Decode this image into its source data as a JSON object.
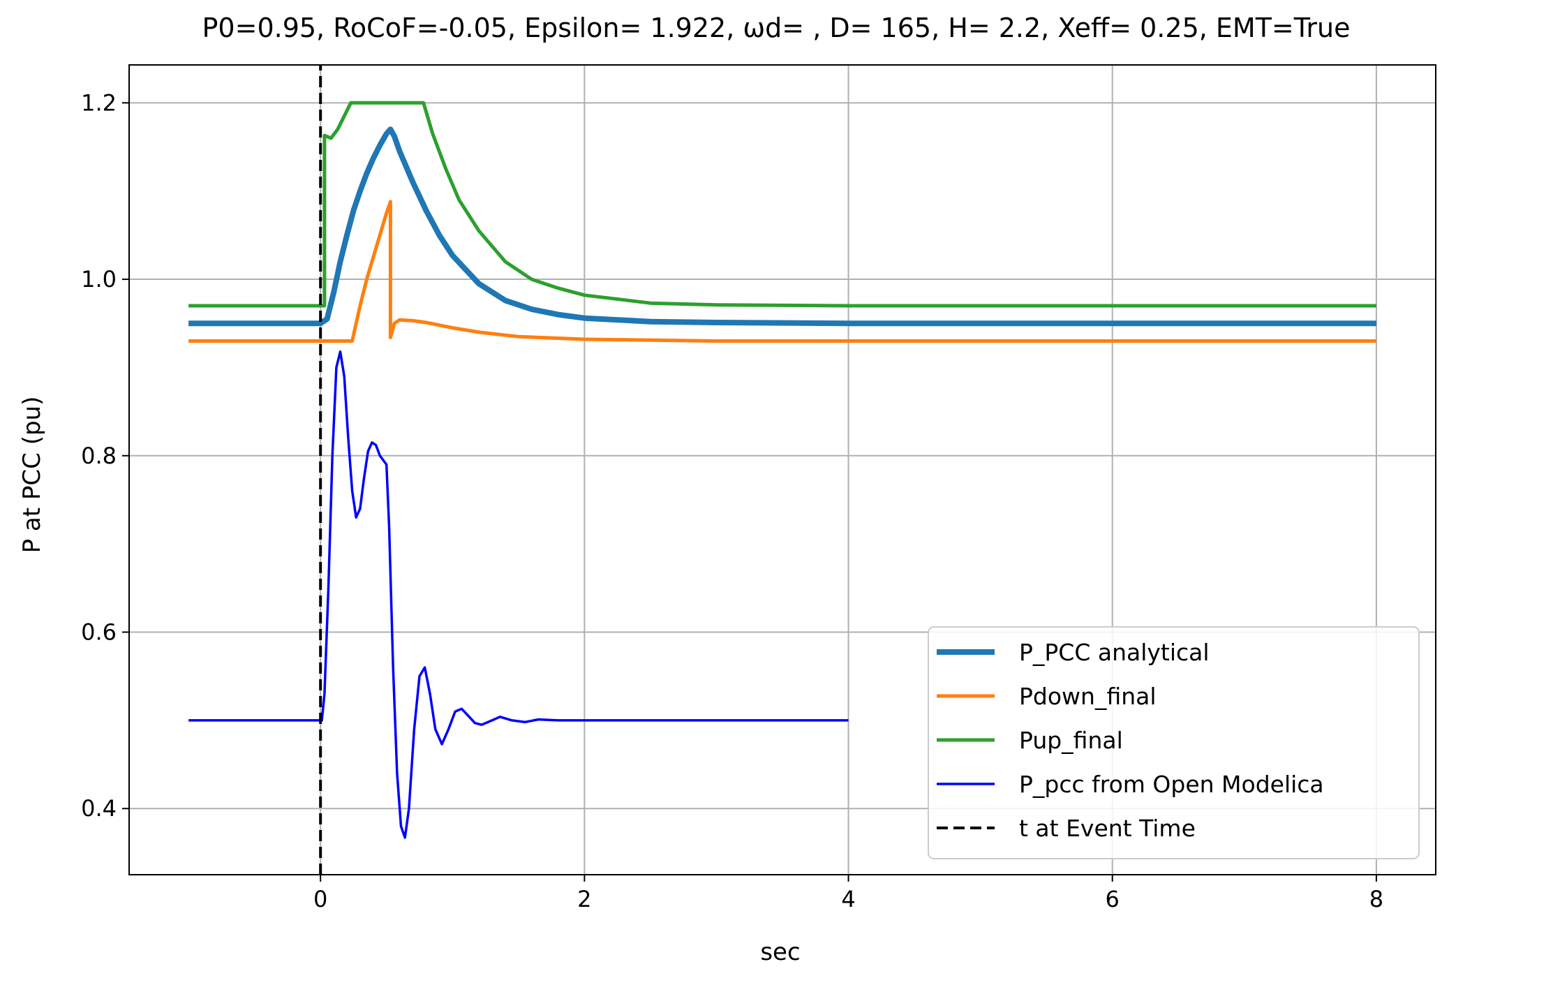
{
  "chart_data": {
    "type": "line",
    "title": "P0=0.95, RoCoF=-0.05, Epsilon= 1.922, ωd= , D= 165, H= 2.2, Xeff= 0.25, EMT=True",
    "xlabel": "sec",
    "ylabel": "P at PCC (pu)",
    "xlim": [
      -1.45,
      8.45
    ],
    "ylim": [
      0.325,
      1.243
    ],
    "xticks": [
      0,
      2,
      4,
      6,
      8
    ],
    "yticks": [
      0.4,
      0.6,
      0.8,
      1.0,
      1.2
    ],
    "xtick_labels": [
      "0",
      "2",
      "4",
      "6",
      "8"
    ],
    "ytick_labels": [
      "0.4",
      "0.6",
      "0.8",
      "1.0",
      "1.2"
    ],
    "grid": true,
    "legend_position": "lower-right",
    "colors": {
      "p_pcc_analytical": "#1f77b4",
      "pdown_final": "#ff7f0e",
      "pup_final": "#2ca02c",
      "p_pcc_open_modelica": "#0000ff",
      "event_time": "#000000"
    },
    "series": [
      {
        "name": "P_PCC analytical",
        "color": "#1f77b4",
        "style": "solid-thick",
        "points": [
          [
            -1,
            0.95
          ],
          [
            0,
            0.95
          ],
          [
            0.05,
            0.955
          ],
          [
            0.1,
            0.985
          ],
          [
            0.15,
            1.02
          ],
          [
            0.2,
            1.05
          ],
          [
            0.25,
            1.078
          ],
          [
            0.3,
            1.1
          ],
          [
            0.35,
            1.12
          ],
          [
            0.4,
            1.137
          ],
          [
            0.45,
            1.152
          ],
          [
            0.5,
            1.165
          ],
          [
            0.53,
            1.17
          ],
          [
            0.56,
            1.162
          ],
          [
            0.6,
            1.145
          ],
          [
            0.7,
            1.11
          ],
          [
            0.8,
            1.078
          ],
          [
            0.9,
            1.05
          ],
          [
            1.0,
            1.027
          ],
          [
            1.2,
            0.995
          ],
          [
            1.4,
            0.976
          ],
          [
            1.6,
            0.966
          ],
          [
            1.8,
            0.96
          ],
          [
            2.0,
            0.956
          ],
          [
            2.5,
            0.952
          ],
          [
            3.0,
            0.951
          ],
          [
            4.0,
            0.95
          ],
          [
            8,
            0.95
          ]
        ]
      },
      {
        "name": "Pdown_final",
        "color": "#ff7f0e",
        "style": "solid",
        "points": [
          [
            -1,
            0.93
          ],
          [
            0.24,
            0.93
          ],
          [
            0.3,
            0.97
          ],
          [
            0.35,
            1.0
          ],
          [
            0.4,
            1.025
          ],
          [
            0.45,
            1.05
          ],
          [
            0.5,
            1.075
          ],
          [
            0.53,
            1.088
          ],
          [
            0.53,
            0.934
          ],
          [
            0.56,
            0.95
          ],
          [
            0.6,
            0.954
          ],
          [
            0.7,
            0.953
          ],
          [
            0.8,
            0.951
          ],
          [
            1.0,
            0.945
          ],
          [
            1.2,
            0.94
          ],
          [
            1.5,
            0.935
          ],
          [
            2.0,
            0.932
          ],
          [
            3.0,
            0.93
          ],
          [
            8,
            0.93
          ]
        ]
      },
      {
        "name": "Pup_final",
        "color": "#2ca02c",
        "style": "solid",
        "points": [
          [
            -1,
            0.97
          ],
          [
            0.03,
            0.97
          ],
          [
            0.03,
            1.163
          ],
          [
            0.08,
            1.16
          ],
          [
            0.13,
            1.17
          ],
          [
            0.18,
            1.185
          ],
          [
            0.23,
            1.2
          ],
          [
            0.78,
            1.2
          ],
          [
            0.85,
            1.165
          ],
          [
            0.95,
            1.125
          ],
          [
            1.05,
            1.09
          ],
          [
            1.2,
            1.055
          ],
          [
            1.4,
            1.02
          ],
          [
            1.6,
            1.0
          ],
          [
            1.8,
            0.99
          ],
          [
            2.0,
            0.982
          ],
          [
            2.5,
            0.973
          ],
          [
            3.0,
            0.971
          ],
          [
            4.0,
            0.97
          ],
          [
            8,
            0.97
          ]
        ]
      },
      {
        "name": "P_pcc from Open Modelica",
        "color": "#0000ff",
        "style": "solid-thin",
        "points": [
          [
            -1,
            0.5
          ],
          [
            0,
            0.5
          ],
          [
            0.01,
            0.5
          ],
          [
            0.03,
            0.53
          ],
          [
            0.06,
            0.65
          ],
          [
            0.09,
            0.8
          ],
          [
            0.12,
            0.9
          ],
          [
            0.15,
            0.918
          ],
          [
            0.18,
            0.89
          ],
          [
            0.21,
            0.82
          ],
          [
            0.24,
            0.76
          ],
          [
            0.27,
            0.73
          ],
          [
            0.3,
            0.74
          ],
          [
            0.33,
            0.775
          ],
          [
            0.36,
            0.805
          ],
          [
            0.39,
            0.815
          ],
          [
            0.42,
            0.812
          ],
          [
            0.45,
            0.8
          ],
          [
            0.5,
            0.79
          ],
          [
            0.52,
            0.72
          ],
          [
            0.55,
            0.56
          ],
          [
            0.58,
            0.44
          ],
          [
            0.61,
            0.38
          ],
          [
            0.64,
            0.367
          ],
          [
            0.67,
            0.4
          ],
          [
            0.71,
            0.49
          ],
          [
            0.75,
            0.55
          ],
          [
            0.79,
            0.56
          ],
          [
            0.83,
            0.53
          ],
          [
            0.87,
            0.49
          ],
          [
            0.92,
            0.473
          ],
          [
            0.97,
            0.49
          ],
          [
            1.02,
            0.51
          ],
          [
            1.07,
            0.513
          ],
          [
            1.12,
            0.505
          ],
          [
            1.17,
            0.497
          ],
          [
            1.22,
            0.495
          ],
          [
            1.3,
            0.5
          ],
          [
            1.36,
            0.504
          ],
          [
            1.45,
            0.5
          ],
          [
            1.55,
            0.498
          ],
          [
            1.65,
            0.501
          ],
          [
            1.8,
            0.5
          ],
          [
            2.0,
            0.5
          ],
          [
            4.0,
            0.5
          ]
        ]
      },
      {
        "name": "t at Event Time",
        "color": "#000000",
        "style": "dashed",
        "points": [
          [
            0,
            0.325
          ],
          [
            0,
            1.243
          ]
        ]
      }
    ]
  }
}
